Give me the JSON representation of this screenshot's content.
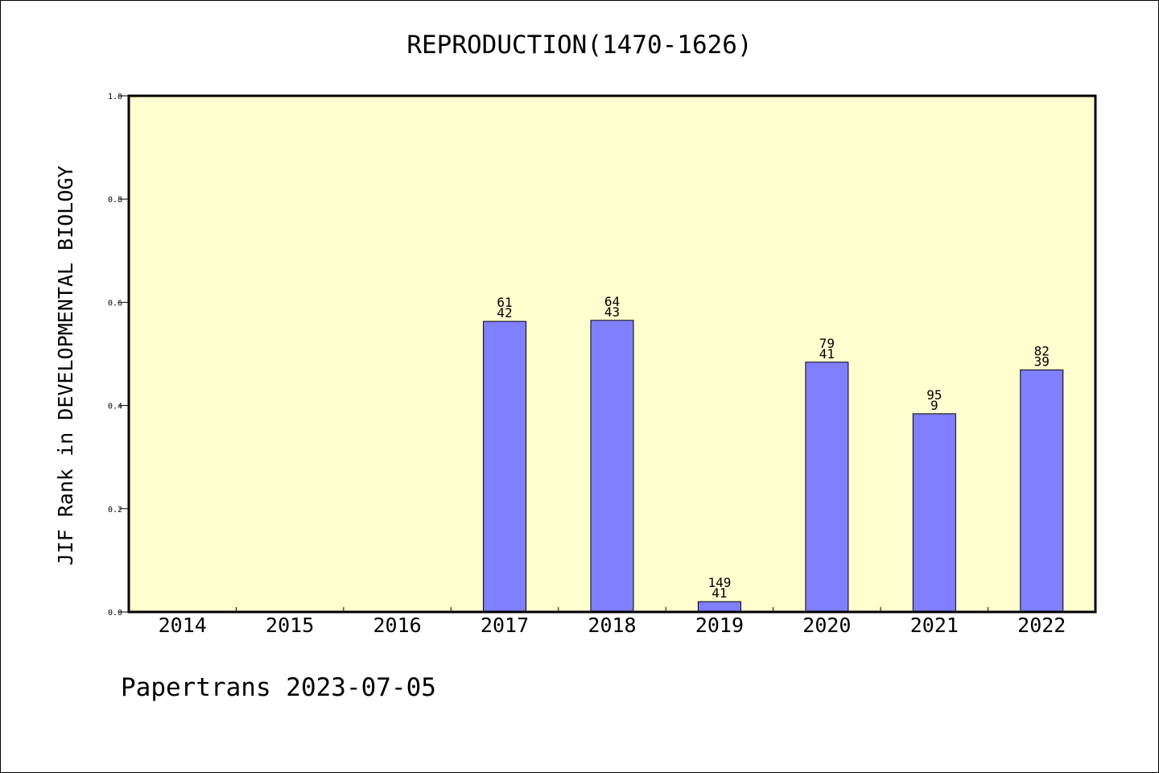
{
  "chart_data": {
    "type": "bar",
    "title": "REPRODUCTION(1470-1626)",
    "xlabel": "",
    "ylabel": "JIF Rank in DEVELOPMENTAL BIOLOGY",
    "ylim": [
      0,
      1
    ],
    "yticks": [
      "0.0",
      "0.2",
      "0.4",
      "0.6",
      "0.8",
      "1.0"
    ],
    "grid": false,
    "categories": [
      "2014",
      "2015",
      "2016",
      "2017",
      "2018",
      "2019",
      "2020",
      "2021",
      "2022"
    ],
    "values": [
      null,
      null,
      null,
      0.563,
      0.565,
      0.02,
      0.484,
      0.384,
      0.469
    ],
    "labels_top": [
      "",
      "",
      "",
      "61",
      "64",
      "149",
      "79",
      "95",
      "82"
    ],
    "labels_bottom": [
      "",
      "",
      "",
      "42",
      "43",
      "41",
      "41",
      "9",
      "39"
    ],
    "colors": {
      "bar": "#8080ff",
      "plot_background": "#ffffd0"
    }
  },
  "footer": "Papertrans 2023-07-05"
}
